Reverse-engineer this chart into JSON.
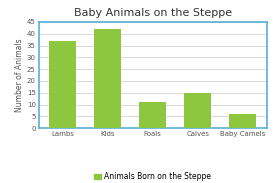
{
  "title": "Baby Animals on the Steppe",
  "categories": [
    "Lambs",
    "Kids",
    "Foals",
    "Calves",
    "Baby Camels"
  ],
  "values": [
    37,
    42,
    11,
    15,
    6
  ],
  "bar_color": "#8dc63f",
  "ylabel": "Number of Animals",
  "ylim": [
    0,
    45
  ],
  "yticks": [
    0,
    5,
    10,
    15,
    20,
    25,
    30,
    35,
    40,
    45
  ],
  "legend_label": "Animals Born on the Steppe",
  "border_color": "#5bafd6",
  "background_color": "#ffffff",
  "title_fontsize": 8,
  "axis_fontsize": 5.5,
  "tick_fontsize": 5,
  "legend_fontsize": 5.5
}
